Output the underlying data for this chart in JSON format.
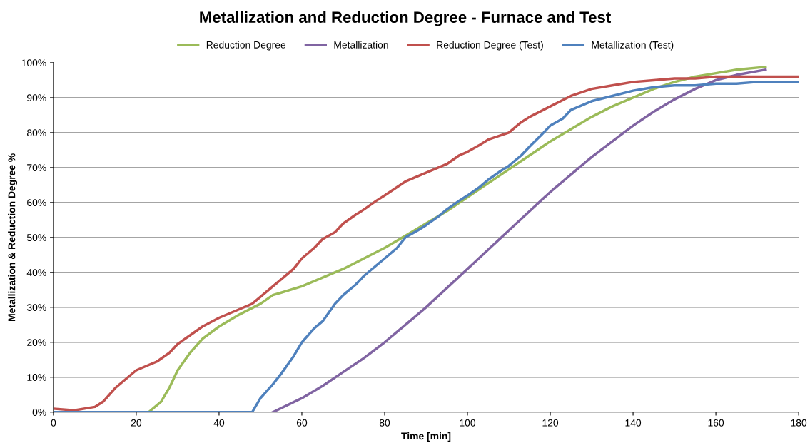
{
  "chart_data": {
    "type": "line",
    "title": "Metallization and Reduction Degree - Furnace and Test",
    "xlabel": "Time [min]",
    "ylabel": "Metallization & Reduction Degree %",
    "xlim": [
      0,
      180
    ],
    "xticks": [
      0,
      20,
      40,
      60,
      80,
      100,
      120,
      140,
      160,
      180
    ],
    "ylim": [
      0,
      100
    ],
    "yticks": [
      {
        "value": 0,
        "label": "0%"
      },
      {
        "value": 10,
        "label": "10%"
      },
      {
        "value": 20,
        "label": "20%"
      },
      {
        "value": 30,
        "label": "30%"
      },
      {
        "value": 40,
        "label": "40%"
      },
      {
        "value": 50,
        "label": "50%"
      },
      {
        "value": 60,
        "label": "60%"
      },
      {
        "value": 70,
        "label": "70%"
      },
      {
        "value": 80,
        "label": "80%"
      },
      {
        "value": 90,
        "label": "90%"
      },
      {
        "value": 100,
        "label": "100%"
      }
    ],
    "grid": "y",
    "legend": "top",
    "marker": "none",
    "line_style": "solid",
    "series": [
      {
        "name": "Reduction Degree",
        "color": "#9bbb59",
        "x": [
          23,
          26,
          28,
          30,
          33,
          36,
          40,
          45,
          50,
          53,
          55,
          60,
          65,
          70,
          75,
          80,
          85,
          90,
          95,
          100,
          105,
          110,
          115,
          120,
          125,
          130,
          135,
          140,
          145,
          150,
          155,
          160,
          165,
          172
        ],
        "values": [
          0,
          3,
          7,
          12,
          17,
          21,
          24.5,
          28,
          31,
          33.5,
          34.2,
          36,
          38.5,
          41,
          44,
          47,
          50.5,
          54,
          57.5,
          61.5,
          65.5,
          69.5,
          73.5,
          77.5,
          81,
          84.5,
          87.5,
          90,
          92.5,
          94.5,
          96,
          97,
          98,
          98.8
        ]
      },
      {
        "name": "Metallization",
        "color": "#8064a2",
        "x": [
          53,
          60,
          65,
          70,
          75,
          80,
          85,
          90,
          95,
          100,
          105,
          110,
          115,
          120,
          125,
          130,
          135,
          140,
          145,
          150,
          155,
          160,
          165,
          172
        ],
        "values": [
          0,
          4,
          7.5,
          11.5,
          15.5,
          20,
          25,
          30,
          35.5,
          41,
          46.5,
          52,
          57.5,
          63,
          68,
          73,
          77.5,
          82,
          86,
          89.5,
          92.5,
          95,
          96.5,
          98
        ]
      },
      {
        "name": "Reduction Degree (Test)",
        "color": "#c0504d",
        "x": [
          0,
          5,
          10,
          12,
          15,
          18,
          20,
          25,
          28,
          30,
          33,
          36,
          40,
          45,
          48,
          50,
          53,
          55,
          58,
          60,
          63,
          65,
          68,
          70,
          73,
          75,
          78,
          80,
          85,
          90,
          95,
          98,
          100,
          103,
          105,
          110,
          113,
          115,
          120,
          125,
          130,
          135,
          140,
          145,
          150,
          155,
          160,
          165,
          170,
          175,
          180
        ],
        "values": [
          1,
          0.5,
          1.5,
          3,
          7,
          10,
          12,
          14.5,
          17,
          19.5,
          22,
          24.5,
          27,
          29.5,
          31,
          33,
          36,
          38,
          41,
          44,
          47,
          49.5,
          51.5,
          54,
          56.5,
          58,
          60.5,
          62,
          66,
          68.5,
          71,
          73.5,
          74.5,
          76.5,
          78,
          80,
          83,
          84.5,
          87.5,
          90.5,
          92.5,
          93.5,
          94.5,
          95,
          95.5,
          95.5,
          96,
          96,
          96,
          96,
          96
        ]
      },
      {
        "name": "Metallization (Test)",
        "color": "#4f81bd",
        "x": [
          0,
          48,
          50,
          53,
          55,
          58,
          60,
          63,
          65,
          68,
          70,
          73,
          75,
          78,
          80,
          83,
          85,
          88,
          90,
          93,
          95,
          98,
          100,
          103,
          105,
          108,
          110,
          113,
          115,
          118,
          120,
          123,
          125,
          130,
          135,
          140,
          145,
          150,
          155,
          160,
          165,
          170,
          175,
          180
        ],
        "values": [
          0,
          0,
          4,
          8,
          11,
          16,
          20,
          24,
          26,
          31,
          33.5,
          36.5,
          39,
          42,
          44,
          47,
          50,
          52,
          53.5,
          56,
          58,
          60.5,
          62,
          64.5,
          66.5,
          69,
          70.5,
          73.5,
          76,
          79.5,
          82,
          84,
          86.5,
          89,
          90.5,
          92,
          93,
          93.5,
          93.5,
          94,
          94,
          94.5,
          94.5,
          94.5
        ]
      }
    ]
  }
}
